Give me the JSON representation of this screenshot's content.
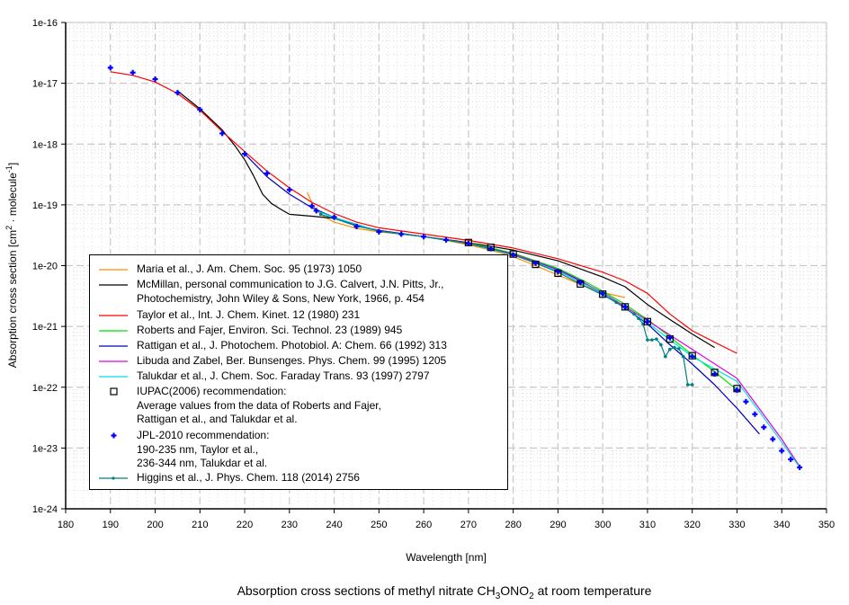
{
  "chart_data": {
    "type": "line",
    "title": "Absorption cross sections of methyl nitrate CH3ONO2 at room temperature",
    "title_parts": {
      "pre": "Absorption cross sections of methyl nitrate CH",
      "sub1": "3",
      "mid": "ONO",
      "sub2": "2",
      "post": " at room temperature"
    },
    "xlabel": "Wavelength [nm]",
    "ylabel": "Absorption cross section [cm2 · molecule-1]",
    "ylabel_parts": {
      "pre": "Absorption cross section [cm",
      "sup1": "2",
      "mid": " · molecule",
      "sup2": "-1",
      "post": "]"
    },
    "xlim": [
      180,
      350
    ],
    "ylim": [
      1e-24,
      1e-16
    ],
    "yscale": "log",
    "grid": true,
    "legend_position": "bottom-left",
    "x_ticks": [
      "180",
      "190",
      "200",
      "210",
      "220",
      "230",
      "240",
      "250",
      "260",
      "270",
      "280",
      "290",
      "300",
      "310",
      "320",
      "330",
      "340",
      "350"
    ],
    "y_ticks": [
      "1e-16",
      "1e-17",
      "1e-18",
      "1e-19",
      "1e-20",
      "1e-21",
      "1e-22",
      "1e-23",
      "1e-24"
    ],
    "series": [
      {
        "name": "Maria et al., J. Am. Chem. Soc. 95 (1973) 1050",
        "color": "#ff8c00",
        "style": "line",
        "x": [
          234,
          235,
          236,
          238,
          240,
          245,
          250,
          255,
          260,
          265,
          270,
          275,
          280,
          285,
          290,
          295,
          300,
          305
        ],
        "y": [
          1.6e-19,
          1.1e-19,
          8e-20,
          6.2e-20,
          5.2e-20,
          4.1e-20,
          3.6e-20,
          3.3e-20,
          3e-20,
          2.6e-20,
          2.2e-20,
          1.8e-20,
          1.4e-20,
          1e-20,
          7e-21,
          4.9e-21,
          3.6e-21,
          3e-21
        ]
      },
      {
        "name": "McMillan, personal communication to J.G. Calvert, J.N. Pitts, Jr., Photochemistry, John Wiley & Sons, New York, 1966, p. 454",
        "color": "#000000",
        "style": "line",
        "lines": [
          "McMillan, personal communication to J.G. Calvert, J.N. Pitts, Jr.,",
          "Photochemistry, John Wiley & Sons, New York, 1966, p. 454"
        ],
        "x": [
          205,
          210,
          215,
          218,
          220,
          222,
          224,
          226,
          228,
          230,
          235,
          240,
          245,
          250,
          260,
          270,
          280,
          290,
          300,
          305,
          310,
          315,
          320,
          325
        ],
        "y": [
          7.5e-18,
          3.8e-18,
          1.7e-18,
          9e-19,
          5.5e-19,
          3e-19,
          1.5e-19,
          1.05e-19,
          8.5e-20,
          7e-20,
          6.5e-20,
          6e-20,
          4.5e-20,
          3.8e-20,
          3e-20,
          2.4e-20,
          1.8e-20,
          1.2e-20,
          6.5e-21,
          4.5e-21,
          2.3e-21,
          1.3e-21,
          7.5e-22,
          4.5e-22
        ]
      },
      {
        "name": "Taylor et al., Int. J. Chem. Kinet. 12 (1980) 231",
        "color": "#ff0000",
        "style": "line",
        "x": [
          190,
          195,
          200,
          205,
          210,
          215,
          220,
          225,
          230,
          235,
          240,
          245,
          250,
          260,
          270,
          280,
          290,
          300,
          305,
          310,
          315,
          320,
          325,
          330
        ],
        "y": [
          1.55e-17,
          1.35e-17,
          1.05e-17,
          6.8e-18,
          3.6e-18,
          1.6e-18,
          7.5e-19,
          3.6e-19,
          1.9e-19,
          1.1e-19,
          7.2e-20,
          5.2e-20,
          4.2e-20,
          3.3e-20,
          2.6e-20,
          1.95e-20,
          1.3e-20,
          7.8e-21,
          5.6e-21,
          3.5e-21,
          1.6e-21,
          8.5e-22,
          5.5e-22,
          3.6e-22
        ]
      },
      {
        "name": "Roberts and Fajer, Environ. Sci. Technol. 23 (1989) 945",
        "color": "#00e000",
        "style": "line",
        "x": [
          270,
          280,
          290,
          295,
          300,
          305,
          310,
          315,
          320,
          325,
          330
        ],
        "y": [
          2.4e-20,
          1.6e-20,
          9e-21,
          6e-21,
          3.8e-21,
          2.3e-21,
          1.3e-21,
          6.8e-22,
          3.4e-22,
          1.8e-22,
          9e-23
        ]
      },
      {
        "name": "Rattigan et al., J. Photochem. Photobiol. A: Chem. 66 (1992) 313",
        "color": "#0000c0",
        "style": "line",
        "x": [
          220,
          225,
          230,
          235,
          240,
          245,
          250,
          260,
          270,
          280,
          290,
          295,
          300,
          305,
          310,
          315,
          320,
          325,
          330,
          335
        ],
        "y": [
          6.9e-19,
          2.9e-19,
          1.5e-19,
          9e-20,
          6.2e-20,
          4.6e-20,
          3.8e-20,
          3e-20,
          2.3e-20,
          1.55e-20,
          8.6e-21,
          5.7e-21,
          3.4e-21,
          2e-21,
          1.1e-21,
          5e-22,
          2.4e-22,
          1.1e-22,
          4.5e-23,
          1.7e-23
        ]
      },
      {
        "name": "Libuda and Zabel, Ber. Bunsenges. Phys. Chem. 99 (1995) 1205",
        "color": "#e000e0",
        "style": "line",
        "x": [
          240,
          250,
          260,
          270,
          280,
          290,
          300,
          310,
          320,
          330,
          340,
          344
        ],
        "y": [
          6.2e-20,
          3.7e-20,
          3e-20,
          2.35e-20,
          1.55e-20,
          8.5e-21,
          3.6e-21,
          1.25e-21,
          4.2e-22,
          1.4e-22,
          1.4e-23,
          5e-24
        ]
      },
      {
        "name": "Talukdar et al., J. Chem. Soc. Faraday Trans. 93 (1997) 2797",
        "color": "#00e0e0",
        "style": "line",
        "x": [
          236,
          240,
          250,
          260,
          270,
          280,
          290,
          300,
          310,
          320,
          330,
          340,
          344
        ],
        "y": [
          8e-20,
          6.2e-20,
          3.7e-20,
          3e-20,
          2.3e-20,
          1.5e-20,
          8.2e-21,
          3.5e-21,
          1.15e-21,
          3.2e-22,
          1.25e-22,
          1.25e-23,
          4.8e-24
        ]
      },
      {
        "name": "IUPAC(2006) recommendation:",
        "color": "#000000",
        "style": "open-square",
        "lines": [
          "IUPAC(2006) recommendation:",
          "Average values from the data of Roberts and Fajer,",
          "Rattigan et al., and Talukdar et al."
        ],
        "x": [
          270,
          275,
          280,
          285,
          290,
          295,
          300,
          305,
          310,
          315,
          320,
          325,
          330
        ],
        "y": [
          2.4e-20,
          2e-20,
          1.55e-20,
          1.05e-20,
          7.5e-21,
          5e-21,
          3.4e-21,
          2.1e-21,
          1.2e-21,
          6.2e-22,
          3.3e-22,
          1.75e-22,
          9.5e-23
        ]
      },
      {
        "name": "JPL-2010 recommendation:",
        "color": "#0000ff",
        "style": "plus",
        "lines": [
          "JPL-2010 recommendation:",
          "190-235 nm, Taylor et al.,",
          "236-344 nm, Talukdar et al."
        ],
        "x": [
          190,
          195,
          200,
          205,
          210,
          215,
          220,
          225,
          230,
          235,
          236,
          240,
          245,
          250,
          255,
          260,
          265,
          270,
          275,
          280,
          285,
          290,
          295,
          300,
          305,
          310,
          315,
          320,
          325,
          330,
          332,
          334,
          336,
          338,
          340,
          342,
          344
        ],
        "y": [
          1.8e-17,
          1.5e-17,
          1.17e-17,
          7e-18,
          3.7e-18,
          1.5e-18,
          6.9e-19,
          3.3e-19,
          1.77e-19,
          9.5e-20,
          8e-20,
          6.3e-20,
          4.4e-20,
          3.6e-20,
          3.3e-20,
          3e-20,
          2.65e-20,
          2.3e-20,
          1.9e-20,
          1.5e-20,
          1.1e-20,
          8e-21,
          5.3e-21,
          3.5e-21,
          2.1e-21,
          1.2e-21,
          6.5e-22,
          3.2e-22,
          1.65e-22,
          9e-23,
          5.8e-23,
          3.6e-23,
          2.2e-23,
          1.4e-23,
          9e-24,
          6.5e-24,
          4.8e-24
        ]
      },
      {
        "name": "Higgins et al., J. Phys. Chem. 118 (2014) 2756",
        "color": "#008080",
        "style": "line-dot",
        "x": [
          237,
          240,
          245,
          250,
          255,
          260,
          265,
          270,
          275,
          280,
          285,
          290,
          295,
          300,
          303,
          305,
          307,
          308,
          309,
          310,
          311,
          312,
          313,
          314,
          315,
          316,
          317,
          318,
          319,
          320
        ],
        "y": [
          7e-20,
          6e-20,
          4.5e-20,
          3.7e-20,
          3.3e-20,
          3e-20,
          2.65e-20,
          2.3e-20,
          1.9e-20,
          1.5e-20,
          1.1e-20,
          7.8e-21,
          5e-21,
          3.3e-21,
          2.5e-21,
          2e-21,
          1.6e-21,
          1.35e-21,
          1.1e-21,
          6e-22,
          6e-22,
          6.2e-22,
          5e-22,
          3.2e-22,
          4.2e-22,
          4.5e-22,
          4.3e-22,
          3.2e-22,
          1.1e-22,
          1.1e-22
        ]
      }
    ]
  }
}
